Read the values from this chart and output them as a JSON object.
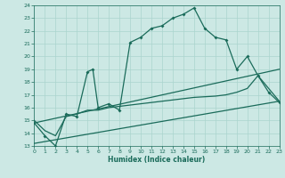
{
  "xlabel": "Humidex (Indice chaleur)",
  "xlim": [
    0,
    23
  ],
  "ylim": [
    13,
    24
  ],
  "xticks": [
    0,
    1,
    2,
    3,
    4,
    5,
    6,
    7,
    8,
    9,
    10,
    11,
    12,
    13,
    14,
    15,
    16,
    17,
    18,
    19,
    20,
    21,
    22,
    23
  ],
  "yticks": [
    13,
    14,
    15,
    16,
    17,
    18,
    19,
    20,
    21,
    22,
    23,
    24
  ],
  "bg_color": "#cce8e4",
  "grid_color": "#aad4ce",
  "line_color": "#1a6b5a",
  "line1_x": [
    0,
    1,
    2,
    3,
    4,
    5,
    5.5,
    6,
    7,
    8,
    9,
    10,
    11,
    12,
    13,
    14,
    15,
    16,
    17,
    18,
    19,
    20,
    21,
    22,
    23
  ],
  "line1_y": [
    14.8,
    13.8,
    13.0,
    15.5,
    15.3,
    18.8,
    19.0,
    16.0,
    16.3,
    15.8,
    21.1,
    21.5,
    22.2,
    22.4,
    23.0,
    23.3,
    23.8,
    22.2,
    21.5,
    21.3,
    19.0,
    20.0,
    18.5,
    17.2,
    16.4
  ],
  "line2_x": [
    0,
    1,
    2,
    3,
    4,
    5,
    6,
    7,
    8,
    9,
    10,
    11,
    12,
    13,
    14,
    15,
    16,
    17,
    18,
    19,
    20,
    21,
    22,
    23
  ],
  "line2_y": [
    15.0,
    14.2,
    13.8,
    15.3,
    15.5,
    15.8,
    15.8,
    16.0,
    16.1,
    16.2,
    16.3,
    16.4,
    16.5,
    16.6,
    16.7,
    16.8,
    16.85,
    16.9,
    17.0,
    17.2,
    17.5,
    18.5,
    17.5,
    16.5
  ],
  "line3_x": [
    0,
    23
  ],
  "line3_y": [
    14.8,
    19.0
  ],
  "line4_x": [
    0,
    23
  ],
  "line4_y": [
    13.2,
    16.5
  ]
}
